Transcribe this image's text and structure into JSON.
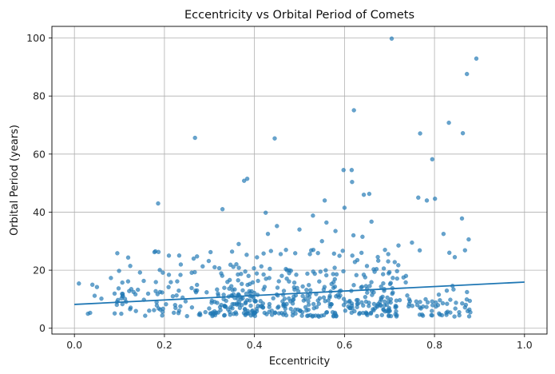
{
  "chart_data": {
    "type": "scatter",
    "title": "Eccentricity vs Orbital Period of Comets",
    "xlabel": "Eccentricity",
    "ylabel": "Orbital Period (years)",
    "xlim": [
      -0.05,
      1.05
    ],
    "ylim": [
      -2,
      104
    ],
    "xticks": [
      0.0,
      0.2,
      0.4,
      0.6,
      0.8,
      1.0
    ],
    "yticks": [
      0,
      20,
      40,
      60,
      80,
      100
    ],
    "xtick_labels": [
      "0.0",
      "0.2",
      "0.4",
      "0.6",
      "0.8",
      "1.0"
    ],
    "ytick_labels": [
      "0",
      "20",
      "40",
      "60",
      "80",
      "100"
    ],
    "grid": true,
    "colors": {
      "points": "#1f77b4",
      "trend": "#1f77b4",
      "grid": "#b0b0b0"
    },
    "trend_line": {
      "x": [
        0.0,
        1.0
      ],
      "y": [
        8.2,
        15.9
      ]
    },
    "outliers": [
      [
        0.705,
        99.8
      ],
      [
        0.893,
        92.9
      ],
      [
        0.872,
        87.6
      ],
      [
        0.832,
        70.8
      ],
      [
        0.768,
        67.1
      ],
      [
        0.863,
        67.2
      ],
      [
        0.268,
        65.6
      ],
      [
        0.445,
        65.4
      ],
      [
        0.621,
        75.1
      ],
      [
        0.598,
        54.5
      ],
      [
        0.616,
        54.5
      ],
      [
        0.617,
        50.4
      ],
      [
        0.795,
        58.2
      ],
      [
        0.186,
        43.0
      ],
      [
        0.329,
        41.0
      ],
      [
        0.377,
        50.8
      ],
      [
        0.384,
        51.5
      ],
      [
        0.425,
        39.8
      ],
      [
        0.556,
        44.0
      ],
      [
        0.643,
        46.0
      ],
      [
        0.655,
        46.3
      ],
      [
        0.764,
        45.0
      ],
      [
        0.783,
        44.0
      ],
      [
        0.801,
        44.6
      ],
      [
        0.861,
        37.8
      ],
      [
        0.876,
        30.6
      ],
      [
        0.365,
        29.0
      ],
      [
        0.45,
        35.2
      ],
      [
        0.53,
        38.8
      ],
      [
        0.56,
        36.4
      ],
      [
        0.6,
        41.5
      ],
      [
        0.66,
        36.7
      ],
      [
        0.21,
        25.0
      ],
      [
        0.18,
        26.5
      ],
      [
        0.265,
        24.0
      ],
      [
        0.43,
        32.5
      ],
      [
        0.47,
        27.0
      ],
      [
        0.5,
        34.0
      ],
      [
        0.55,
        30.0
      ],
      [
        0.58,
        33.5
      ],
      [
        0.62,
        32.0
      ],
      [
        0.64,
        31.5
      ],
      [
        0.69,
        27.0
      ],
      [
        0.72,
        28.5
      ],
      [
        0.75,
        29.5
      ],
      [
        0.82,
        32.5
      ],
      [
        0.833,
        26.0
      ],
      [
        0.845,
        24.5
      ],
      [
        0.01,
        15.4
      ],
      [
        0.04,
        15.0
      ],
      [
        0.05,
        14.2
      ],
      [
        0.03,
        5.0
      ],
      [
        0.035,
        5.3
      ],
      [
        0.045,
        11.2
      ],
      [
        0.06,
        10.2
      ]
    ],
    "points_note": ""
  }
}
